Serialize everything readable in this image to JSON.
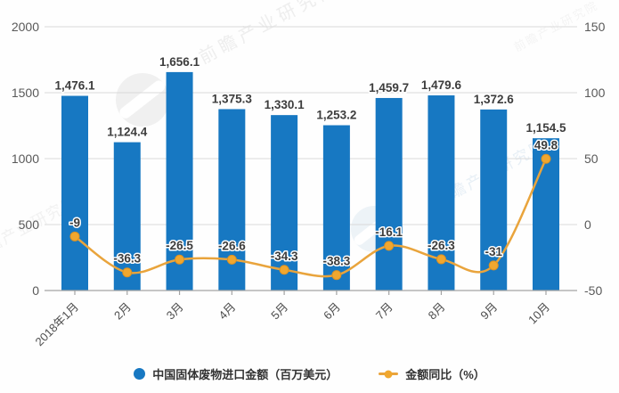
{
  "watermark": {
    "brand_text": "前瞻产业研究院"
  },
  "chart_data": {
    "type": "combo-bar-line",
    "title": "",
    "categories": [
      "2018年1月",
      "2月",
      "3月",
      "4月",
      "5月",
      "6月",
      "7月",
      "8月",
      "9月",
      "10月"
    ],
    "series": [
      {
        "name": "中国固体废物进口金额（百万美元）",
        "type": "bar",
        "axis": "left",
        "color": "#1778c2",
        "values": [
          1476.1,
          1124.4,
          1656.1,
          1375.3,
          1330.1,
          1253.2,
          1459.7,
          1479.6,
          1372.6,
          1154.5
        ],
        "labels": [
          "1,476.1",
          "1,124.4",
          "1,656.1",
          "1,375.3",
          "1,330.1",
          "1,253.2",
          "1,459.7",
          "1,479.6",
          "1,372.6",
          "1,154.5"
        ]
      },
      {
        "name": "金额同比（%）",
        "type": "line",
        "axis": "right",
        "color": "#e9a43c",
        "marker_color": "#f0a72f",
        "marker_stroke": "#dd9222",
        "values": [
          -9,
          -36.3,
          -26.5,
          -26.6,
          -34.3,
          -38.3,
          -16.1,
          -26.3,
          -31,
          49.8
        ],
        "labels": [
          "-9",
          "-36.3",
          "-26.5",
          "-26.6",
          "-34.3",
          "-38.3",
          "-16.1",
          "-26.3",
          "-31",
          "49.8"
        ]
      }
    ],
    "left_axis": {
      "min": 0,
      "max": 2000,
      "ticks": [
        0,
        500,
        1000,
        1500,
        2000
      ]
    },
    "right_axis": {
      "min": -50,
      "max": 150,
      "ticks": [
        -50,
        0,
        50,
        100,
        150
      ]
    },
    "grid": true,
    "legend_position": "bottom"
  },
  "styles": {
    "grid_color": "#d9d9d9",
    "axis_line_color": "#a3a3a3",
    "tick_label_color": "#595959",
    "x_label_color": "#4d4d4d",
    "data_label_color": "#3d3d3d",
    "watermark_gray": "#e0e0e0",
    "watermark_blue": "#d3e2ee"
  }
}
